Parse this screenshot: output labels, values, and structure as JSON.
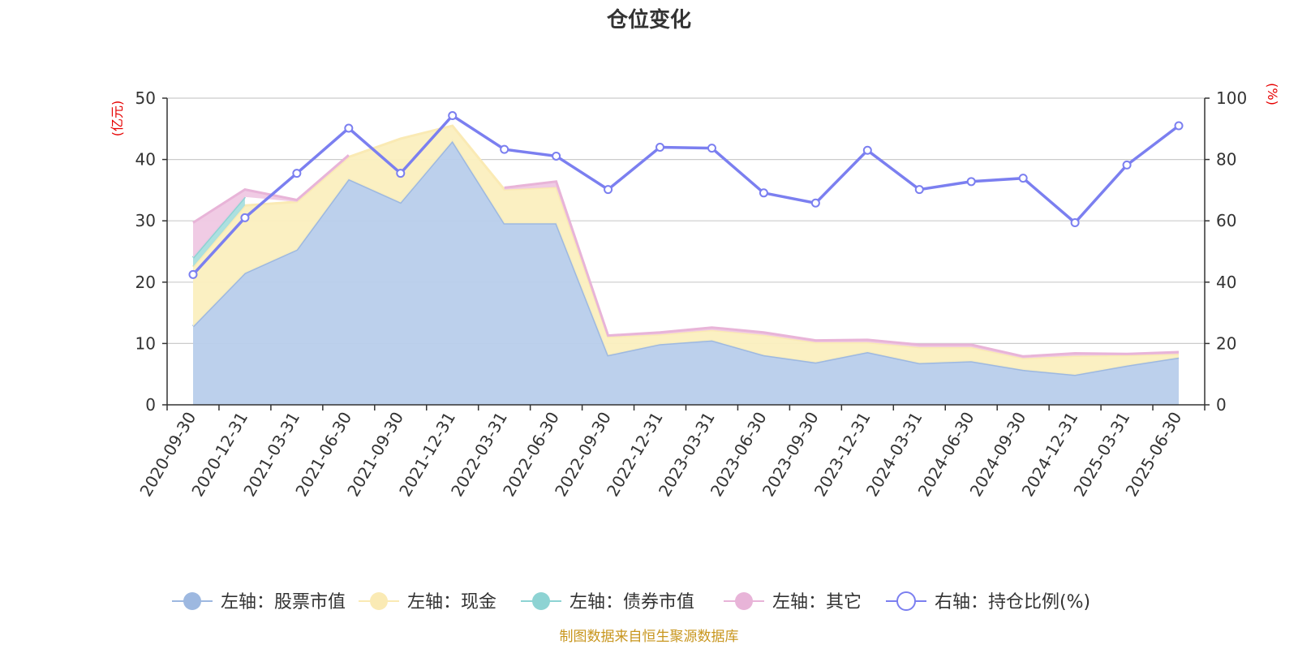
{
  "chart_data": {
    "type": "area",
    "title": "仓位变化",
    "left_axis_unit": "(亿元)",
    "right_axis_unit": "(%)",
    "ylim_left": [
      0,
      50
    ],
    "ylim_right": [
      0,
      100
    ],
    "left_ticks": [
      "0",
      "10",
      "20",
      "30",
      "40",
      "50"
    ],
    "right_ticks": [
      "0",
      "20",
      "40",
      "60",
      "80",
      "100"
    ],
    "categories": [
      "2020-09-30",
      "2020-12-31",
      "2021-03-31",
      "2021-06-30",
      "2021-09-30",
      "2021-12-31",
      "2022-03-31",
      "2022-06-30",
      "2022-09-30",
      "2022-12-31",
      "2023-03-31",
      "2023-06-30",
      "2023-09-30",
      "2023-12-31",
      "2024-03-31",
      "2024-06-30",
      "2024-09-30",
      "2024-12-31",
      "2025-03-31",
      "2025-06-30"
    ],
    "stacked": true,
    "series": [
      {
        "name": "左轴：股票市值",
        "axis": "left",
        "color": "#9db8e0",
        "fill": "#b8cdeb",
        "values": [
          12.8,
          21.5,
          25.3,
          36.8,
          33.0,
          43.0,
          29.6,
          29.6,
          8.1,
          9.9,
          10.5,
          8.1,
          6.9,
          8.6,
          6.8,
          7.1,
          5.7,
          4.9,
          6.4,
          7.7
        ]
      },
      {
        "name": "左轴：现金",
        "axis": "left",
        "color": "#faeab4",
        "fill": "#fbefbf",
        "values": [
          9.7,
          11.0,
          7.8,
          3.6,
          10.4,
          2.5,
          5.5,
          5.9,
          3.0,
          1.6,
          1.7,
          3.3,
          3.3,
          1.6,
          2.6,
          2.3,
          1.9,
          3.1,
          1.7,
          0.6
        ]
      },
      {
        "name": "左轴：债券市值",
        "axis": "left",
        "color": "#8dd3d3",
        "fill": "#a8dede",
        "values": [
          1.5,
          1.4,
          0,
          0,
          0,
          0,
          0,
          0,
          0,
          0,
          0,
          0,
          0,
          0,
          0,
          0,
          0,
          0,
          0,
          0
        ]
      },
      {
        "name": "左轴：其它",
        "axis": "left",
        "color": "#e8b4d8",
        "fill": "#efc8e3",
        "values": [
          5.7,
          1.2,
          0.3,
          0.3,
          0.0,
          0.0,
          0.3,
          0.9,
          0.2,
          0.3,
          0.4,
          0.4,
          0.3,
          0.4,
          0.4,
          0.4,
          0.3,
          0.4,
          0.2,
          0.3
        ]
      },
      {
        "name": "右轴：持仓比例(%)",
        "axis": "right",
        "color": "#7b7ff0",
        "type": "line",
        "values": [
          42.5,
          61.0,
          75.5,
          90.2,
          75.5,
          94.3,
          83.3,
          81.1,
          70.2,
          84.0,
          83.7,
          69.1,
          65.8,
          83.0,
          70.2,
          72.8,
          73.9,
          59.4,
          78.2,
          91.0
        ]
      }
    ],
    "legend_position": "bottom",
    "grid": true
  },
  "source_note": "制图数据来自恒生聚源数据库"
}
